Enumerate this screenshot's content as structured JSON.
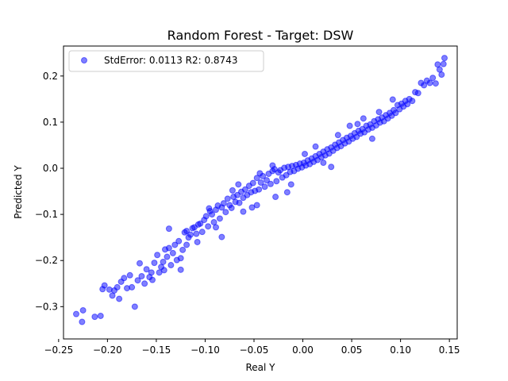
{
  "chart_data": {
    "type": "scatter",
    "title": "Random Forest - Target: DSW",
    "xlabel": "Real Y",
    "ylabel": "Predicted Y",
    "xlim": [
      -0.245,
      0.158
    ],
    "ylim": [
      -0.37,
      0.265
    ],
    "xticks": [
      -0.25,
      -0.2,
      -0.15,
      -0.1,
      -0.05,
      0.0,
      0.05,
      0.1,
      0.15
    ],
    "xtick_labels": [
      "−0.25",
      "−0.20",
      "−0.15",
      "−0.10",
      "−0.05",
      "0.00",
      "0.05",
      "0.10",
      "0.15"
    ],
    "yticks": [
      -0.3,
      -0.2,
      -0.1,
      0.0,
      0.1,
      0.2
    ],
    "ytick_labels": [
      "−0.3",
      "−0.2",
      "−0.1",
      "0.0",
      "0.1",
      "0.2"
    ],
    "grid": false,
    "legend_position": "top-left",
    "marker_color": "#0000ff",
    "marker_alpha": 0.5,
    "series": [
      {
        "name": "StdError: 0.0113 R2: 0.8743",
        "points": [
          [
            -0.232,
            -0.316
          ],
          [
            -0.226,
            -0.333
          ],
          [
            -0.225,
            -0.308
          ],
          [
            -0.213,
            -0.322
          ],
          [
            -0.207,
            -0.32
          ],
          [
            -0.205,
            -0.262
          ],
          [
            -0.203,
            -0.254
          ],
          [
            -0.198,
            -0.263
          ],
          [
            -0.195,
            -0.276
          ],
          [
            -0.193,
            -0.265
          ],
          [
            -0.19,
            -0.258
          ],
          [
            -0.188,
            -0.283
          ],
          [
            -0.186,
            -0.246
          ],
          [
            -0.183,
            -0.238
          ],
          [
            -0.18,
            -0.26
          ],
          [
            -0.177,
            -0.232
          ],
          [
            -0.175,
            -0.258
          ],
          [
            -0.172,
            -0.3
          ],
          [
            -0.169,
            -0.243
          ],
          [
            -0.167,
            -0.206
          ],
          [
            -0.165,
            -0.234
          ],
          [
            -0.162,
            -0.25
          ],
          [
            -0.16,
            -0.219
          ],
          [
            -0.157,
            -0.236
          ],
          [
            -0.154,
            -0.242
          ],
          [
            -0.152,
            -0.205
          ],
          [
            -0.149,
            -0.188
          ],
          [
            -0.147,
            -0.226
          ],
          [
            -0.145,
            -0.214
          ],
          [
            -0.143,
            -0.203
          ],
          [
            -0.141,
            -0.176
          ],
          [
            -0.139,
            -0.192
          ],
          [
            -0.137,
            -0.173
          ],
          [
            -0.135,
            -0.21
          ],
          [
            -0.133,
            -0.184
          ],
          [
            -0.131,
            -0.166
          ],
          [
            -0.129,
            -0.199
          ],
          [
            -0.127,
            -0.158
          ],
          [
            -0.125,
            -0.195
          ],
          [
            -0.123,
            -0.177
          ],
          [
            -0.121,
            -0.139
          ],
          [
            -0.119,
            -0.166
          ],
          [
            -0.117,
            -0.15
          ],
          [
            -0.115,
            -0.144
          ],
          [
            -0.113,
            -0.13
          ],
          [
            -0.111,
            -0.128
          ],
          [
            -0.109,
            -0.142
          ],
          [
            -0.107,
            -0.122
          ],
          [
            -0.105,
            -0.12
          ],
          [
            -0.103,
            -0.138
          ],
          [
            -0.101,
            -0.112
          ],
          [
            -0.099,
            -0.104
          ],
          [
            -0.097,
            -0.126
          ],
          [
            -0.095,
            -0.093
          ],
          [
            -0.093,
            -0.1
          ],
          [
            -0.091,
            -0.117
          ],
          [
            -0.089,
            -0.09
          ],
          [
            -0.087,
            -0.081
          ],
          [
            -0.085,
            -0.109
          ],
          [
            -0.083,
            -0.085
          ],
          [
            -0.081,
            -0.076
          ],
          [
            -0.079,
            -0.095
          ],
          [
            -0.077,
            -0.066
          ],
          [
            -0.075,
            -0.08
          ],
          [
            -0.073,
            -0.086
          ],
          [
            -0.071,
            -0.062
          ],
          [
            -0.069,
            -0.073
          ],
          [
            -0.067,
            -0.058
          ],
          [
            -0.065,
            -0.075
          ],
          [
            -0.063,
            -0.051
          ],
          [
            -0.061,
            -0.064
          ],
          [
            -0.059,
            -0.046
          ],
          [
            -0.057,
            -0.058
          ],
          [
            -0.055,
            -0.038
          ],
          [
            -0.053,
            -0.052
          ],
          [
            -0.051,
            -0.032
          ],
          [
            -0.049,
            -0.049
          ],
          [
            -0.047,
            -0.021
          ],
          [
            -0.045,
            -0.046
          ],
          [
            -0.043,
            -0.031
          ],
          [
            -0.041,
            -0.017
          ],
          [
            -0.039,
            -0.04
          ],
          [
            -0.037,
            -0.026
          ],
          [
            -0.035,
            -0.012
          ],
          [
            -0.033,
            -0.034
          ],
          [
            -0.031,
            -0.006
          ],
          [
            -0.029,
            -0.002
          ],
          [
            -0.027,
            -0.028
          ],
          [
            -0.025,
            -0.009
          ],
          [
            -0.023,
            -0.004
          ],
          [
            -0.021,
            -0.02
          ],
          [
            -0.019,
            0.001
          ],
          [
            -0.017,
            -0.015
          ],
          [
            -0.015,
            0.003
          ],
          [
            -0.013,
            -0.008
          ],
          [
            -0.011,
            0.005
          ],
          [
            -0.009,
            -0.006
          ],
          [
            -0.007,
            0.007
          ],
          [
            -0.005,
            -0.001
          ],
          [
            -0.003,
            0.01
          ],
          [
            -0.001,
            0.002
          ],
          [
            0.001,
            0.012
          ],
          [
            0.003,
            0.006
          ],
          [
            0.005,
            0.017
          ],
          [
            0.007,
            0.009
          ],
          [
            0.009,
            0.021
          ],
          [
            0.011,
            0.014
          ],
          [
            0.013,
            0.026
          ],
          [
            0.015,
            0.018
          ],
          [
            0.017,
            0.031
          ],
          [
            0.019,
            0.024
          ],
          [
            0.021,
            0.036
          ],
          [
            0.023,
            0.028
          ],
          [
            0.025,
            0.041
          ],
          [
            0.027,
            0.032
          ],
          [
            0.029,
            0.045
          ],
          [
            0.031,
            0.038
          ],
          [
            0.033,
            0.051
          ],
          [
            0.035,
            0.044
          ],
          [
            0.037,
            0.056
          ],
          [
            0.039,
            0.048
          ],
          [
            0.041,
            0.061
          ],
          [
            0.043,
            0.054
          ],
          [
            0.045,
            0.066
          ],
          [
            0.047,
            0.058
          ],
          [
            0.049,
            0.07
          ],
          [
            0.051,
            0.064
          ],
          [
            0.053,
            0.076
          ],
          [
            0.055,
            0.068
          ],
          [
            0.057,
            0.081
          ],
          [
            0.059,
            0.075
          ],
          [
            0.061,
            0.085
          ],
          [
            0.063,
            0.078
          ],
          [
            0.065,
            0.092
          ],
          [
            0.067,
            0.084
          ],
          [
            0.069,
            0.095
          ],
          [
            0.071,
            0.088
          ],
          [
            0.073,
            0.102
          ],
          [
            0.075,
            0.093
          ],
          [
            0.077,
            0.106
          ],
          [
            0.079,
            0.099
          ],
          [
            0.081,
            0.11
          ],
          [
            0.083,
            0.102
          ],
          [
            0.085,
            0.115
          ],
          [
            0.087,
            0.108
          ],
          [
            0.089,
            0.12
          ],
          [
            0.091,
            0.114
          ],
          [
            0.093,
            0.126
          ],
          [
            0.095,
            0.12
          ],
          [
            0.097,
            0.137
          ],
          [
            0.099,
            0.128
          ],
          [
            0.101,
            0.14
          ],
          [
            0.103,
            0.134
          ],
          [
            0.105,
            0.146
          ],
          [
            0.107,
            0.139
          ],
          [
            0.109,
            0.15
          ],
          [
            0.112,
            0.146
          ],
          [
            0.115,
            0.165
          ],
          [
            0.118,
            0.163
          ],
          [
            0.121,
            0.185
          ],
          [
            0.124,
            0.18
          ],
          [
            0.127,
            0.19
          ],
          [
            0.13,
            0.185
          ],
          [
            0.133,
            0.196
          ],
          [
            0.136,
            0.184
          ],
          [
            0.138,
            0.225
          ],
          [
            0.14,
            0.214
          ],
          [
            0.142,
            0.203
          ],
          [
            0.144,
            0.226
          ],
          [
            0.145,
            0.239
          ],
          [
            -0.052,
            -0.085
          ],
          [
            -0.028,
            -0.062
          ],
          [
            0.021,
            0.012
          ],
          [
            -0.061,
            -0.094
          ],
          [
            -0.012,
            -0.035
          ],
          [
            0.048,
            0.092
          ],
          [
            0.062,
            0.108
          ],
          [
            -0.108,
            -0.16
          ],
          [
            -0.142,
            -0.221
          ],
          [
            -0.155,
            -0.226
          ],
          [
            -0.119,
            -0.136
          ],
          [
            -0.096,
            -0.087
          ],
          [
            -0.072,
            -0.048
          ],
          [
            -0.044,
            -0.011
          ],
          [
            0.002,
            0.031
          ],
          [
            0.036,
            0.072
          ],
          [
            0.078,
            0.122
          ],
          [
            0.092,
            0.149
          ],
          [
            -0.066,
            -0.035
          ],
          [
            -0.031,
            0.006
          ],
          [
            0.013,
            0.047
          ],
          [
            0.056,
            0.096
          ],
          [
            -0.089,
            -0.128
          ],
          [
            -0.125,
            -0.22
          ],
          [
            -0.083,
            -0.149
          ],
          [
            -0.047,
            -0.08
          ],
          [
            -0.016,
            -0.052
          ],
          [
            0.029,
            0.003
          ],
          [
            0.071,
            0.064
          ],
          [
            -0.137,
            -0.131
          ]
        ]
      }
    ]
  }
}
